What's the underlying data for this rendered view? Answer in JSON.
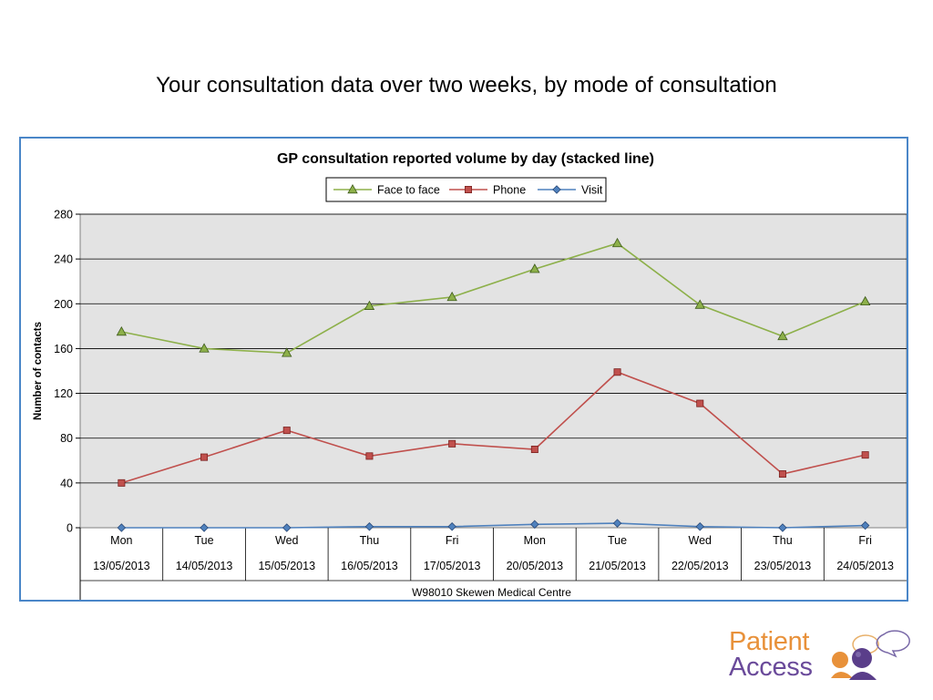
{
  "slide": {
    "title": "Your consultation data over two weeks, by mode of consultation"
  },
  "logo": {
    "line1": "Patient",
    "line2": "Access"
  },
  "chart_data": {
    "type": "line",
    "title": "GP consultation reported volume by day (stacked line)",
    "ylabel": "Number of contacts",
    "xlabel": "W98010 Skewen Medical Centre",
    "ylim": [
      0,
      280
    ],
    "yticks": [
      0,
      40,
      80,
      120,
      160,
      200,
      240,
      280
    ],
    "grid": true,
    "legend_position": "top-center",
    "categories": [
      {
        "day": "Mon",
        "date": "13/05/2013"
      },
      {
        "day": "Tue",
        "date": "14/05/2013"
      },
      {
        "day": "Wed",
        "date": "15/05/2013"
      },
      {
        "day": "Thu",
        "date": "16/05/2013"
      },
      {
        "day": "Fri",
        "date": "17/05/2013"
      },
      {
        "day": "Mon",
        "date": "20/05/2013"
      },
      {
        "day": "Tue",
        "date": "21/05/2013"
      },
      {
        "day": "Wed",
        "date": "22/05/2013"
      },
      {
        "day": "Thu",
        "date": "23/05/2013"
      },
      {
        "day": "Fri",
        "date": "24/05/2013"
      }
    ],
    "series": [
      {
        "name": "Face to face",
        "color": "#8db04a",
        "marker": "triangle",
        "values": [
          175,
          160,
          156,
          198,
          206,
          231,
          254,
          199,
          171,
          202
        ]
      },
      {
        "name": "Phone",
        "color": "#c0504d",
        "marker": "square",
        "values": [
          40,
          63,
          87,
          64,
          75,
          70,
          139,
          111,
          48,
          65
        ]
      },
      {
        "name": "Visit",
        "color": "#4f81bd",
        "marker": "diamond",
        "values": [
          0,
          0,
          0,
          1,
          1,
          3,
          4,
          1,
          0,
          2
        ]
      }
    ]
  }
}
